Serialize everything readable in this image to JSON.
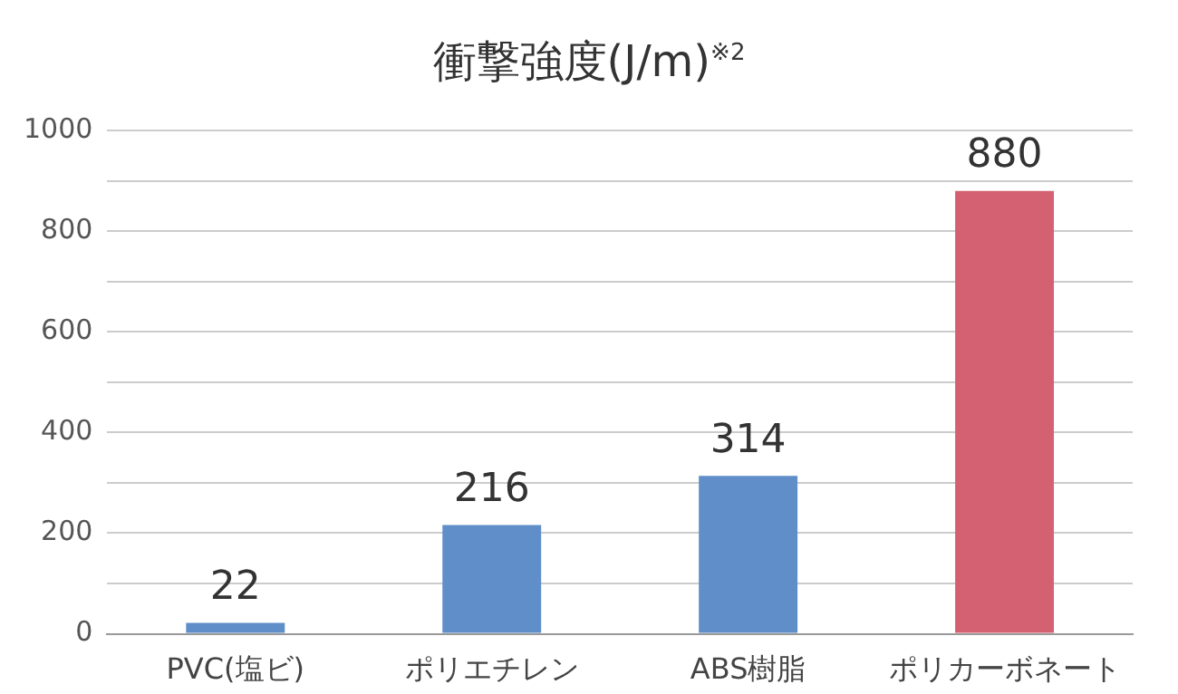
{
  "chart_data": {
    "type": "bar",
    "title": "衝撃強度(J/m)$^{※2}$",
    "categories": [
      "PVC(塩ビ)",
      "ポリエチレン",
      "ABS樹脂",
      "ポリカーボネート"
    ],
    "values": [
      22,
      216,
      314,
      880
    ],
    "colors": [
      "#5f8ec8",
      "#5f8ec8",
      "#5f8ec8",
      "#d46171"
    ],
    "ylim": [
      0,
      1000
    ],
    "yticks": [
      0,
      {
        "value": 100,
        "label": null
      },
      200,
      {
        "value": 300,
        "label": null
      },
      400,
      {
        "value": 500,
        "label": null
      },
      600,
      {
        "value": 700,
        "label": null
      },
      800,
      {
        "value": 900,
        "label": null
      },
      1000
    ],
    "grid": "y",
    "data_labels": true
  }
}
